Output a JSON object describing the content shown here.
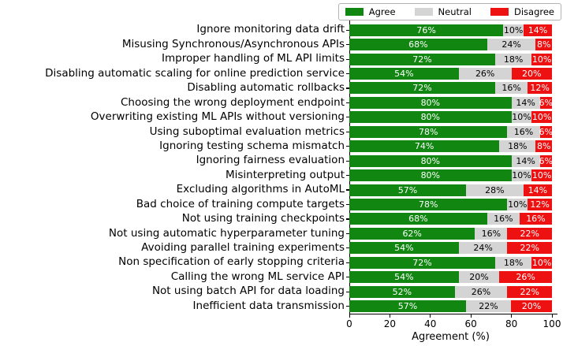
{
  "chart_data": {
    "type": "bar",
    "orientation": "horizontal",
    "stacked": true,
    "xlabel": "Agreement (%)",
    "xlim": [
      0,
      100
    ],
    "xticks": [
      0,
      20,
      40,
      60,
      80,
      100
    ],
    "grid": false,
    "legend_position": "top-right",
    "legend": [
      {
        "name": "Agree",
        "color": "#118711",
        "label_color": "#ffffff"
      },
      {
        "name": "Neutral",
        "color": "#d4d4d4",
        "label_color": "#000000"
      },
      {
        "name": "Disagree",
        "color": "#ee1111",
        "label_color": "#ffffff"
      }
    ],
    "categories": [
      "Ignore monitoring data drift",
      "Misusing Synchronous/Asynchronous APIs",
      "Improper handling of ML API limits",
      "Disabling automatic scaling for online prediction service",
      "Disabling automatic rollbacks",
      "Choosing the wrong deployment endpoint",
      "Overwriting existing ML APIs without versioning",
      "Using suboptimal evaluation metrics",
      "Ignoring testing schema mismatch",
      "Ignoring fairness evaluation",
      "Misinterpreting output",
      "Excluding algorithms in AutoML",
      "Bad choice of training compute targets",
      "Not using training checkpoints",
      "Not using automatic hyperparameter tuning",
      "Avoiding parallel training experiments",
      "Non specification of early stopping criteria",
      "Calling the wrong ML service API",
      "Not using batch API for data loading",
      "Inefficient data transmission"
    ],
    "series": [
      {
        "name": "Agree",
        "values": [
          76,
          68,
          72,
          54,
          72,
          80,
          80,
          78,
          74,
          80,
          80,
          57,
          78,
          68,
          62,
          54,
          72,
          54,
          52,
          57
        ]
      },
      {
        "name": "Neutral",
        "values": [
          10,
          24,
          18,
          26,
          16,
          14,
          10,
          16,
          18,
          14,
          10,
          28,
          10,
          16,
          16,
          24,
          18,
          20,
          26,
          22
        ]
      },
      {
        "name": "Disagree",
        "values": [
          14,
          8,
          10,
          20,
          12,
          6,
          10,
          6,
          8,
          6,
          10,
          14,
          12,
          16,
          22,
          22,
          10,
          26,
          22,
          20
        ]
      }
    ],
    "bar_label_suffix": "%"
  }
}
